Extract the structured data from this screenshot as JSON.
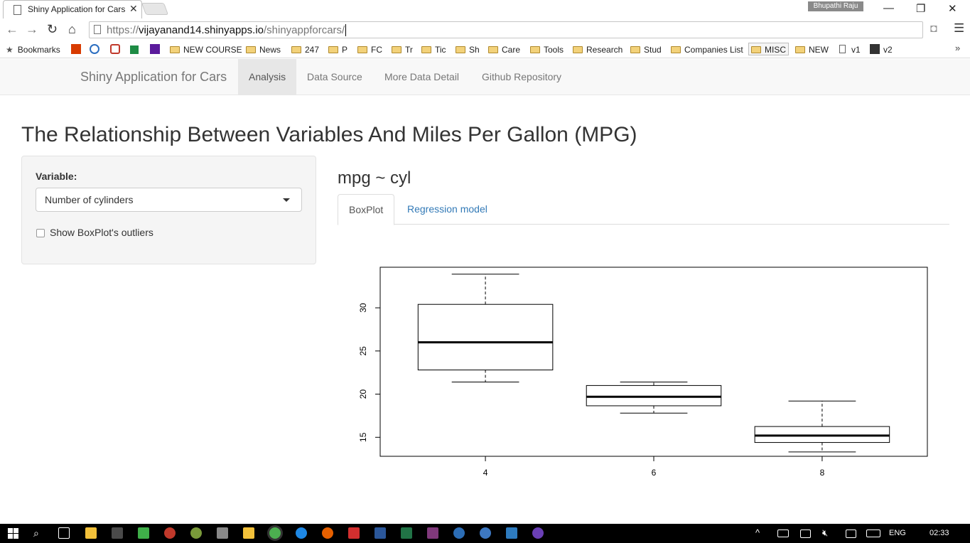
{
  "browser": {
    "tab_title": "Shiny Application for Cars",
    "tab_close": "✕",
    "profile_name": "Bhupathi Raju",
    "url_scheme": "https://",
    "url_host": "vijayanand14.shinyapps.io",
    "url_path": "/shinyappforcars/"
  },
  "bookmarks": {
    "bookmarks_label": "Bookmarks",
    "items": [
      "NEW COURSE",
      "News",
      "247",
      "P",
      "FC",
      "Tr",
      "Tic",
      "Sh",
      "Care",
      "Tools",
      "Research",
      "Stud",
      "Companies List",
      "MISC",
      "NEW",
      "v1",
      "v2"
    ],
    "more": "»"
  },
  "navbar": {
    "brand": "Shiny Application for Cars",
    "links": [
      "Analysis",
      "Data Source",
      "More Data Detail",
      "Github Repository"
    ]
  },
  "page": {
    "title": "The Relationship Between Variables And Miles Per Gallon (MPG)",
    "sidebar": {
      "variable_label": "Variable:",
      "variable_value": "Number of cylinders",
      "outliers_label": "Show BoxPlot's outliers",
      "outliers_checked": false
    },
    "formula": "mpg ~ cyl",
    "tabs": [
      "BoxPlot",
      "Regression model"
    ]
  },
  "chart_data": {
    "type": "boxplot",
    "categories": [
      "4",
      "6",
      "8"
    ],
    "boxes": [
      {
        "category": "4",
        "whisker_low": 21.4,
        "q1": 22.8,
        "median": 26.0,
        "q3": 30.4,
        "whisker_high": 33.9
      },
      {
        "category": "6",
        "whisker_low": 17.8,
        "q1": 18.65,
        "median": 19.7,
        "q3": 21.0,
        "whisker_high": 21.4
      },
      {
        "category": "8",
        "whisker_low": 13.3,
        "q1": 14.4,
        "median": 15.2,
        "q3": 16.25,
        "whisker_high": 19.2
      }
    ],
    "y_ticks": [
      15,
      20,
      25,
      30
    ],
    "ylim": [
      12.8,
      34.7
    ],
    "title": "",
    "xlabel": "",
    "ylabel": ""
  },
  "taskbar": {
    "language": "ENG",
    "time": "02:33"
  }
}
